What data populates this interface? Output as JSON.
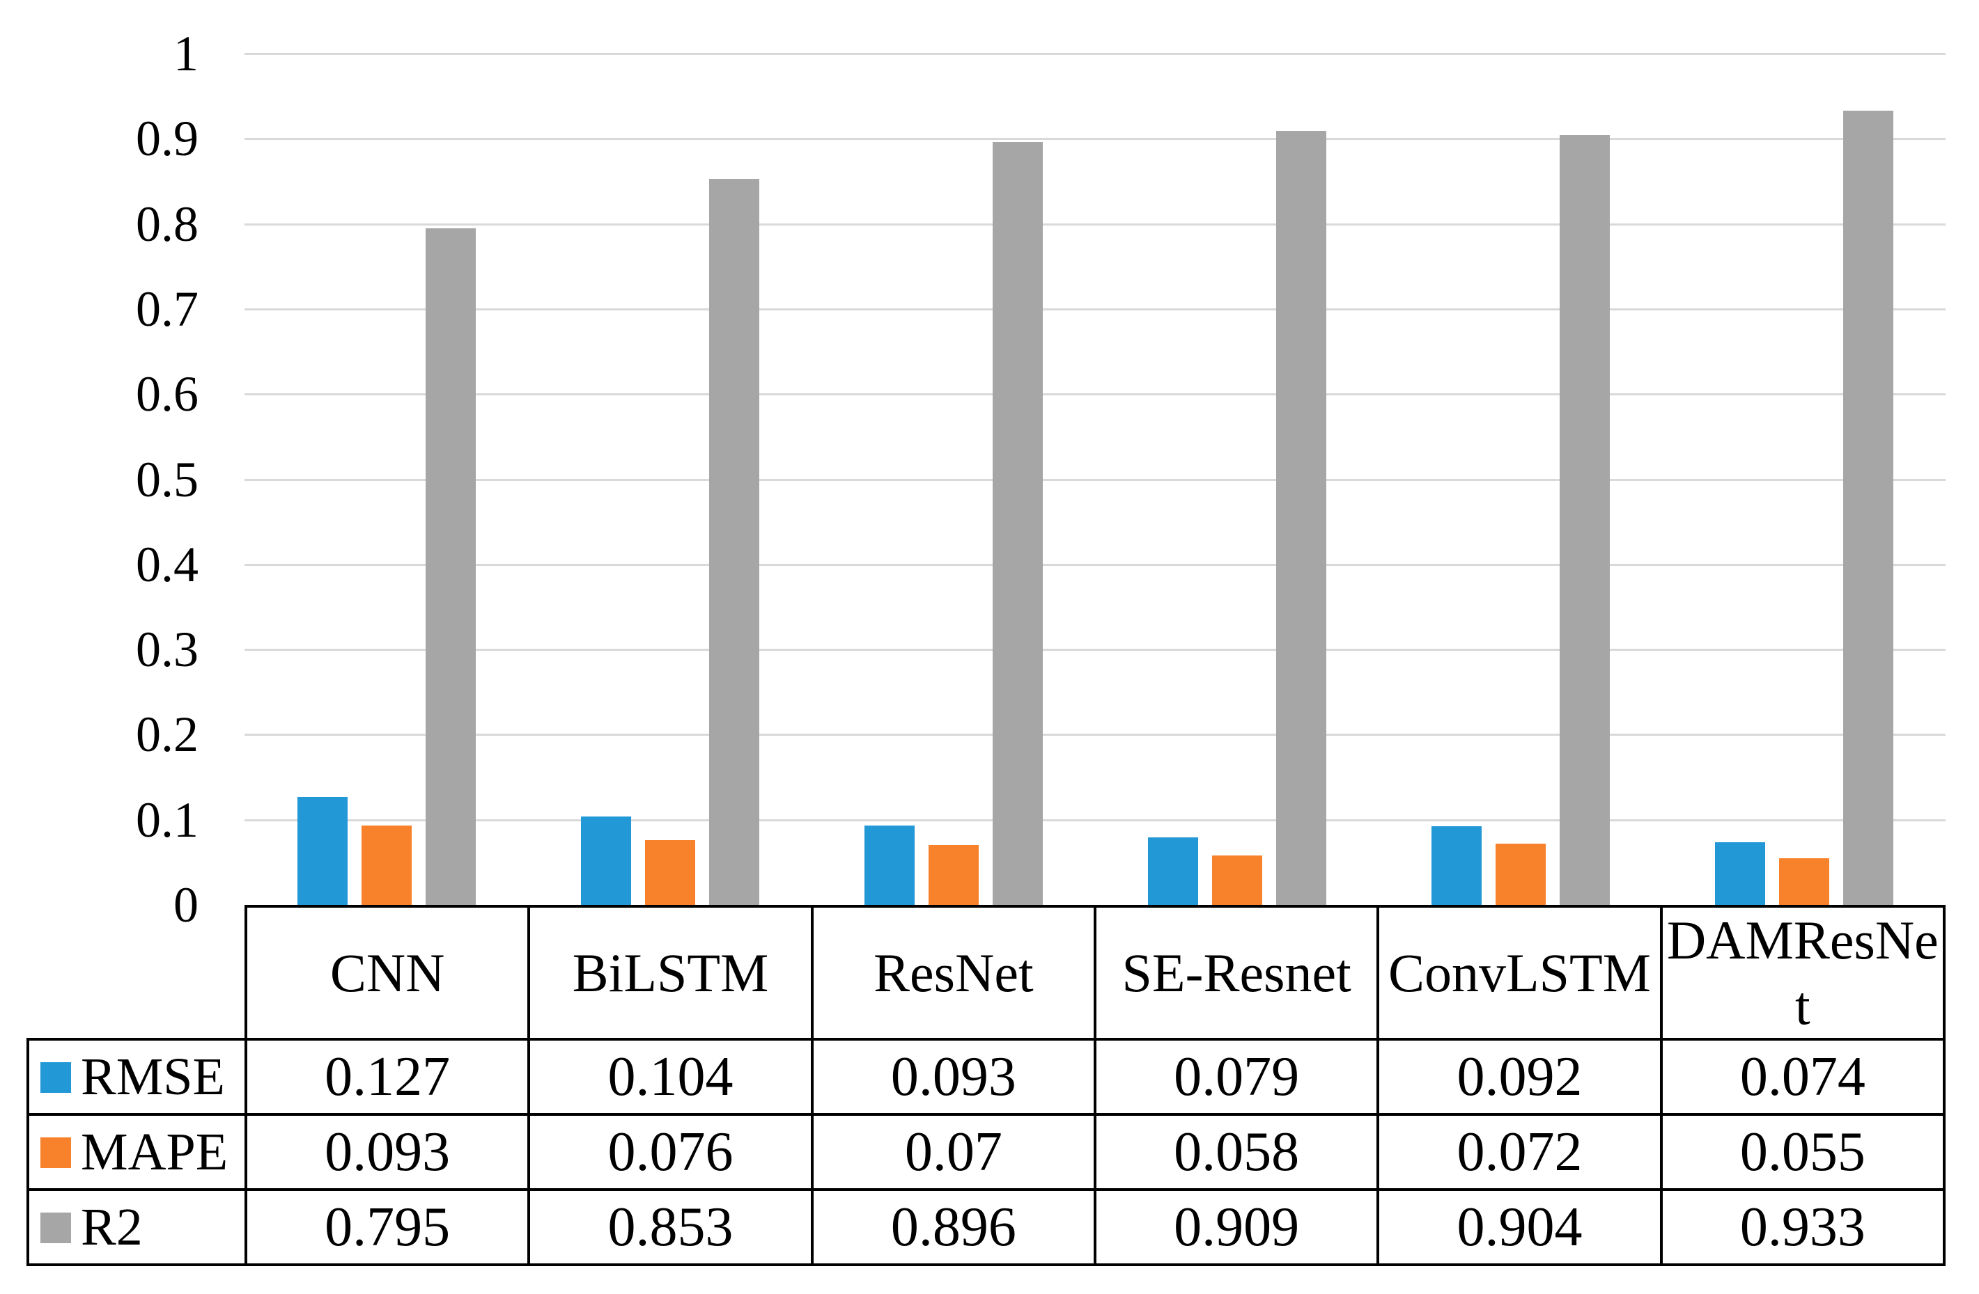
{
  "chart_data": {
    "type": "bar",
    "title": "",
    "xlabel": "",
    "ylabel": "",
    "categories": [
      "CNN",
      "BiLSTM",
      "ResNet",
      "SE-Resnet",
      "ConvLSTM",
      "DAMResNet"
    ],
    "series": [
      {
        "name": "RMSE",
        "color": "#2298D6",
        "values": [
          0.127,
          0.104,
          0.093,
          0.079,
          0.092,
          0.074
        ]
      },
      {
        "name": "MAPE",
        "color": "#F8822B",
        "values": [
          0.093,
          0.076,
          0.07,
          0.058,
          0.072,
          0.055
        ]
      },
      {
        "name": "R2",
        "color": "#A6A6A6",
        "values": [
          0.795,
          0.853,
          0.896,
          0.909,
          0.904,
          0.933
        ]
      }
    ],
    "ylim": [
      0,
      1
    ],
    "yticks": [
      0,
      0.1,
      0.2,
      0.3,
      0.4,
      0.5,
      0.6,
      0.7,
      0.8,
      0.9,
      1
    ],
    "ytick_labels": [
      "0",
      "0.1",
      "0.2",
      "0.3",
      "0.4",
      "0.5",
      "0.6",
      "0.7",
      "0.8",
      "0.9",
      "1"
    ],
    "grid": true,
    "gridline_color": "#D9D9D9",
    "legend_position": "table-left"
  },
  "table": {
    "headers": [
      "CNN",
      "BiLSTM",
      "ResNet",
      "SE-Resnet",
      "ConvLSTM",
      "DAMResNet"
    ],
    "rows": [
      {
        "label": "RMSE",
        "swatch_color": "#2298D6",
        "values": [
          "0.127",
          "0.104",
          "0.093",
          "0.079",
          "0.092",
          "0.074"
        ]
      },
      {
        "label": "MAPE",
        "swatch_color": "#F8822B",
        "values": [
          "0.093",
          "0.076",
          "0.07",
          "0.058",
          "0.072",
          "0.055"
        ]
      },
      {
        "label": "R2",
        "swatch_color": "#A6A6A6",
        "values": [
          "0.795",
          "0.853",
          "0.896",
          "0.909",
          "0.904",
          "0.933"
        ]
      }
    ]
  },
  "colors": {
    "rmse": "#2298D6",
    "mape": "#F8822B",
    "r2": "#A6A6A6",
    "gridline": "#D9D9D9",
    "table_border": "#000000",
    "background": "#FFFFFF"
  }
}
